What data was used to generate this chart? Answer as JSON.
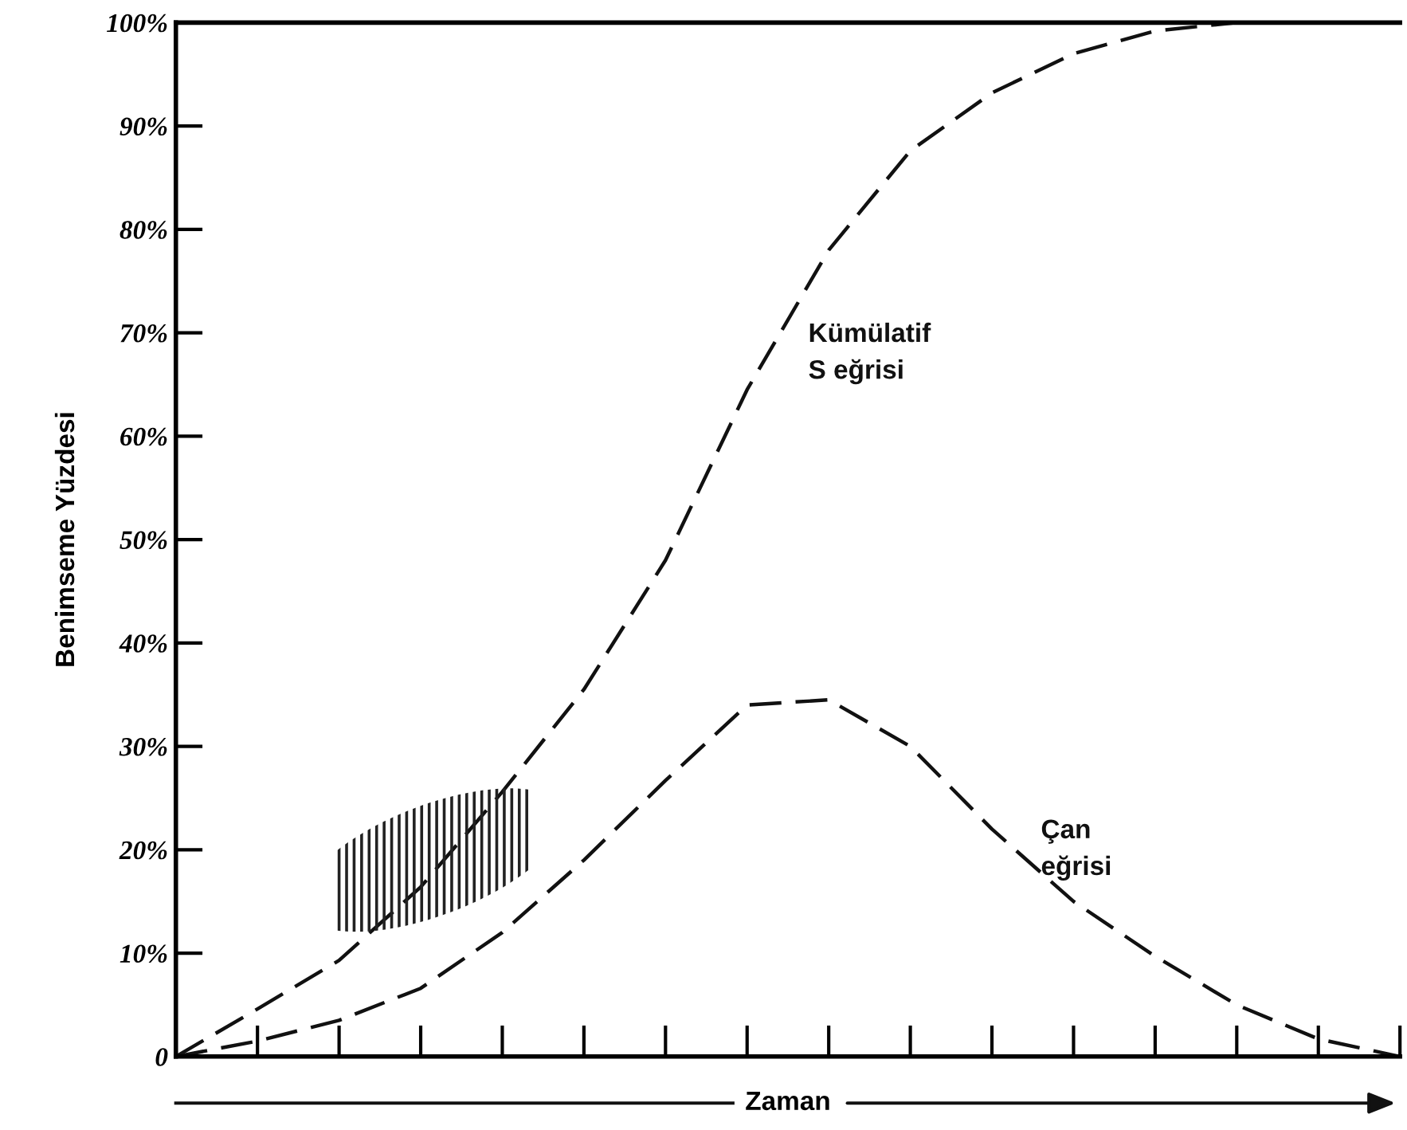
{
  "chart_data": {
    "type": "line",
    "xlabel": "Zaman",
    "ylabel": "Benimseme Yüzdesi",
    "categories": [
      null,
      null,
      null,
      null,
      null,
      null,
      null,
      null,
      null,
      null,
      null,
      null,
      null,
      null,
      null,
      null
    ],
    "series": [
      {
        "name": "Kümülatif\nS eğrisi",
        "color": "#111111",
        "values": [
          0,
          4.6,
          9.3,
          16.4,
          25.6,
          35.5,
          48,
          64.5,
          78,
          87.6,
          93.2,
          97,
          99.2,
          100,
          100,
          100
        ]
      },
      {
        "name": "Çan\neğrisi",
        "color": "#111111",
        "values": [
          0,
          1.5,
          3.5,
          6.6,
          12,
          19,
          26.7,
          34,
          34.5,
          30,
          22,
          15,
          9.7,
          5,
          1.7,
          0
        ]
      }
    ],
    "ylim": [
      0,
      100
    ],
    "yticks": [
      0,
      {
        "value": 10,
        "label": "10%"
      },
      {
        "value": 20,
        "label": "20%"
      },
      {
        "value": 30,
        "label": "30%"
      },
      {
        "value": 40,
        "label": "40%"
      },
      {
        "value": 50,
        "label": "50%"
      },
      {
        "value": 60,
        "label": "60%"
      },
      {
        "value": 70,
        "label": "70%"
      },
      {
        "value": 80,
        "label": "80%"
      },
      {
        "value": 90,
        "label": "90%"
      },
      {
        "value": 100,
        "label": "100%"
      }
    ],
    "line_style": "dashed",
    "marker": "none",
    "grid": false,
    "legend": false
  }
}
